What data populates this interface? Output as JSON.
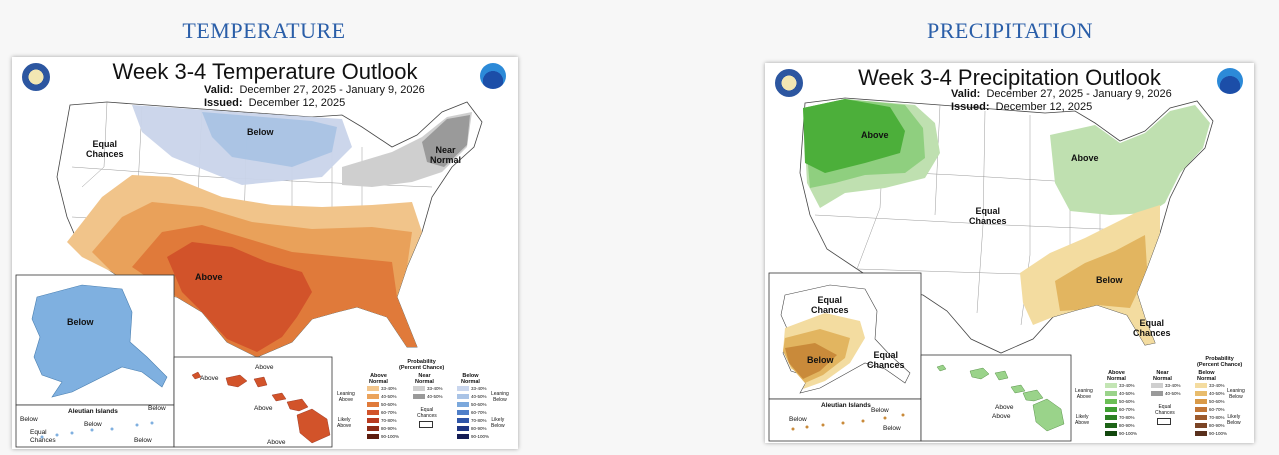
{
  "headings": {
    "left": "TEMPERATURE",
    "right": "PRECIPITATION"
  },
  "temperature": {
    "title": "Week 3-4 Temperature Outlook",
    "valid_label": "Valid:",
    "valid_value": "December 27, 2025 - January 9, 2026",
    "issued_label": "Issued:",
    "issued_value": "December 12, 2025",
    "regions": {
      "equal_chances": "Equal\nChances",
      "below": "Below",
      "near_normal": "Near\nNormal",
      "above": "Above",
      "alaska_below": "Below",
      "aleutian_islands": "Aleutian Islands",
      "aleutian_below_1": "Below",
      "aleutian_below_2": "Below",
      "aleutian_below_3": "Below",
      "aleutian_equal": "Equal\nChances",
      "aleutian_below_4": "Below",
      "hawaii_above_1": "Above",
      "hawaii_above_2": "Above",
      "hawaii_above_3": "Above",
      "hawaii_above_4": "Above"
    },
    "colors": {
      "above": [
        "#f5c98b",
        "#e89a4a",
        "#dc6a2c",
        "#c94a1f"
      ],
      "below": [
        "#c7d3ea",
        "#a7c3e3",
        "#7fb0e0"
      ],
      "near": [
        "#d2d2d2",
        "#aaaaaa",
        "#888888"
      ]
    }
  },
  "precipitation": {
    "title": "Week 3-4 Precipitation Outlook",
    "valid_label": "Valid:",
    "valid_value": "December 27, 2025 - January 9, 2026",
    "issued_label": "Issued:",
    "issued_value": "December 12, 2025",
    "regions": {
      "above_nw": "Above",
      "above_ne": "Above",
      "equal_chances_center": "Equal\nChances",
      "below_se": "Below",
      "equal_chances_fl": "Equal\nChances",
      "alaska_equal_1": "Equal\nChances",
      "alaska_below": "Below",
      "alaska_equal_2": "Equal\nChances",
      "aleutian_islands": "Aleutian Islands",
      "aleutian_below_1": "Below",
      "aleutian_below_2": "Below",
      "aleutian_below_3": "Below",
      "hawaii_above_1": "Above",
      "hawaii_above_2": "Above"
    },
    "colors": {
      "above": [
        "#bfe0b0",
        "#8fcf7f",
        "#4caf3a"
      ],
      "below": [
        "#f3dca0",
        "#e2b560",
        "#c98a3a",
        "#a5622a"
      ]
    }
  },
  "legend": {
    "probability": "Probability\n(Percent Chance)",
    "above_normal": "Above\nNormal",
    "near_normal": "Near\nNormal",
    "below_normal": "Below\nNormal",
    "leaning_above": "Leaning\nAbove",
    "likely_above": "Likely\nAbove",
    "leaning_below": "Leaning\nBelow",
    "likely_below": "Likely\nBelow",
    "equal_chances": "Equal\nChances",
    "ranges": [
      "33-40%",
      "40-50%",
      "50-60%",
      "60-70%",
      "70-80%",
      "80-90%",
      "90-100%"
    ],
    "near_ranges": [
      "33-40%",
      "40-50%"
    ],
    "temp_above_colors": [
      "#f3c68c",
      "#eba35b",
      "#e07a3a",
      "#d2532a",
      "#b83a1f",
      "#8e2a16",
      "#5e1c0e"
    ],
    "temp_near_colors": [
      "#cfcfcf",
      "#9a9a9a"
    ],
    "temp_below_colors": [
      "#c9d6ee",
      "#a9c3e6",
      "#7ba8dc",
      "#4f7fc9",
      "#2f55a8",
      "#1e3583",
      "#141c55"
    ],
    "precip_above_colors": [
      "#c3e5b4",
      "#9ad38a",
      "#6bbf55",
      "#3f9f32",
      "#2c8124",
      "#1d6417",
      "#12470d"
    ],
    "precip_near_colors": [
      "#cfcfcf",
      "#9a9a9a"
    ],
    "precip_below_colors": [
      "#f4dca0",
      "#e8bc6c",
      "#d99a48",
      "#c27636",
      "#9d5a2c",
      "#7b4425",
      "#59301d"
    ]
  }
}
